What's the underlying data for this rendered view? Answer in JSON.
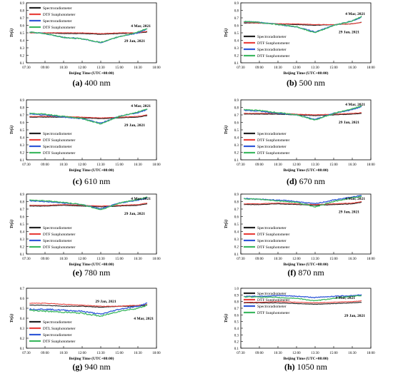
{
  "figure": {
    "x_axis_title": "Beijing Time (UTC+08:00)",
    "y_axis_title": "Tr(λ)",
    "x_tick_labels": [
      "07:30",
      "09:00",
      "10:30",
      "12:00",
      "13:30",
      "15:00",
      "16:30",
      "18:00"
    ],
    "y_tick_labels": [
      "0.1",
      "0.2",
      "0.3",
      "0.4",
      "0.5",
      "0.6",
      "0.7",
      "0.8",
      "0.9"
    ],
    "y_tick_labels_h": [
      "0.1",
      "0.2",
      "0.3",
      "0.4",
      "0.5",
      "0.6",
      "0.7",
      "0.8",
      "0.9",
      "1.0"
    ],
    "date_a": "4 Mar, 2021",
    "date_b": "29 Jan, 2021",
    "colors": {
      "Spectroradiometer_mar": "#222222",
      "DTF_mar": "#e8413c",
      "Spectroradiometer_jan": "#2f57d8",
      "DTF_jan": "#3cb860"
    }
  },
  "chart_data": [
    {
      "type": "line",
      "caption_letter": "(a)",
      "caption_text": " 400 nm",
      "x": [
        "07:45",
        "09:00",
        "10:30",
        "12:00",
        "13:30",
        "15:00",
        "16:30",
        "17:15"
      ],
      "ylim": [
        0.1,
        0.9
      ],
      "legend": [
        "Spectroradiometer",
        "DTF Sunphotometer",
        "Spectroradiometer",
        "DTF Sunphotometer"
      ],
      "series": [
        {
          "name": "Spectroradiometer",
          "values": [
            0.5,
            0.5,
            0.49,
            0.49,
            0.48,
            0.49,
            0.5,
            0.51
          ]
        },
        {
          "name": "DTF Sunphotometer",
          "values": [
            0.5,
            0.5,
            0.5,
            0.5,
            0.49,
            0.5,
            0.5,
            0.52
          ]
        },
        {
          "name": "Spectroradiometer",
          "values": [
            0.51,
            0.49,
            0.44,
            0.42,
            0.37,
            0.45,
            0.5,
            0.55
          ]
        },
        {
          "name": "DTF Sunphotometer",
          "values": [
            0.51,
            0.49,
            0.44,
            0.42,
            0.37,
            0.45,
            0.51,
            0.56
          ]
        }
      ]
    },
    {
      "type": "line",
      "caption_letter": "(b)",
      "caption_text": " 500 nm",
      "x": [
        "07:45",
        "09:00",
        "10:30",
        "12:00",
        "13:30",
        "15:00",
        "16:30",
        "17:15"
      ],
      "ylim": [
        0.1,
        0.9
      ],
      "legend": [
        "Spectroradiometer",
        "DTF Sunphotometer",
        "Spectroradiometer",
        "DTF Sunphotometer"
      ],
      "series": [
        {
          "name": "Spectroradiometer",
          "values": [
            0.63,
            0.63,
            0.62,
            0.61,
            0.6,
            0.61,
            0.62,
            0.64
          ]
        },
        {
          "name": "DTF Sunphotometer",
          "values": [
            0.64,
            0.63,
            0.62,
            0.62,
            0.61,
            0.61,
            0.62,
            0.64
          ]
        },
        {
          "name": "Spectroradiometer",
          "values": [
            0.65,
            0.64,
            0.61,
            0.58,
            0.51,
            0.6,
            0.66,
            0.71
          ]
        },
        {
          "name": "DTF Sunphotometer",
          "values": [
            0.65,
            0.64,
            0.61,
            0.58,
            0.5,
            0.6,
            0.66,
            0.72
          ]
        }
      ]
    },
    {
      "type": "line",
      "caption_letter": "(c)",
      "caption_text": " 610 nm",
      "x": [
        "07:45",
        "09:00",
        "10:30",
        "12:00",
        "13:30",
        "15:00",
        "16:30",
        "17:15"
      ],
      "ylim": [
        0.1,
        0.9
      ],
      "legend": [
        "Spectroradiometer",
        "DTF Sunphotometer",
        "Spectroradiometer",
        "DTF Sunphotometer"
      ],
      "series": [
        {
          "name": "Spectroradiometer",
          "values": [
            0.67,
            0.67,
            0.67,
            0.66,
            0.65,
            0.66,
            0.67,
            0.69
          ]
        },
        {
          "name": "DTF Sunphotometer",
          "values": [
            0.68,
            0.68,
            0.68,
            0.67,
            0.66,
            0.67,
            0.68,
            0.7
          ]
        },
        {
          "name": "Spectroradiometer",
          "values": [
            0.71,
            0.7,
            0.67,
            0.65,
            0.59,
            0.68,
            0.73,
            0.77
          ]
        },
        {
          "name": "DTF Sunphotometer",
          "values": [
            0.72,
            0.71,
            0.68,
            0.65,
            0.58,
            0.68,
            0.74,
            0.78
          ]
        }
      ]
    },
    {
      "type": "line",
      "caption_letter": "(d)",
      "caption_text": " 670 nm",
      "x": [
        "07:45",
        "09:00",
        "10:30",
        "12:00",
        "13:30",
        "15:00",
        "16:30",
        "17:15"
      ],
      "ylim": [
        0.1,
        0.9
      ],
      "legend": [
        "Spectroradiometer",
        "DTF Sunphotometer",
        "Spectroradiometer",
        "DTF Sunphotometer"
      ],
      "series": [
        {
          "name": "Spectroradiometer",
          "values": [
            0.71,
            0.71,
            0.71,
            0.7,
            0.69,
            0.7,
            0.71,
            0.72
          ]
        },
        {
          "name": "DTF Sunphotometer",
          "values": [
            0.72,
            0.72,
            0.72,
            0.71,
            0.7,
            0.71,
            0.72,
            0.73
          ]
        },
        {
          "name": "Spectroradiometer",
          "values": [
            0.76,
            0.75,
            0.72,
            0.7,
            0.64,
            0.72,
            0.77,
            0.81
          ]
        },
        {
          "name": "DTF Sunphotometer",
          "values": [
            0.77,
            0.76,
            0.73,
            0.7,
            0.63,
            0.72,
            0.78,
            0.82
          ]
        }
      ]
    },
    {
      "type": "line",
      "caption_letter": "(e)",
      "caption_text": " 780 nm",
      "x": [
        "07:45",
        "09:00",
        "10:30",
        "12:00",
        "13:30",
        "15:00",
        "16:30",
        "17:15"
      ],
      "ylim": [
        0.1,
        0.9
      ],
      "legend": [
        "Spectroradiometer",
        "DTF Sunphotometer",
        "Spectroradiometer",
        "DTF Sunphotometer"
      ],
      "series": [
        {
          "name": "Spectroradiometer",
          "values": [
            0.74,
            0.74,
            0.75,
            0.74,
            0.73,
            0.74,
            0.75,
            0.77
          ]
        },
        {
          "name": "DTF Sunphotometer",
          "values": [
            0.75,
            0.75,
            0.76,
            0.75,
            0.74,
            0.75,
            0.76,
            0.78
          ]
        },
        {
          "name": "Spectroradiometer",
          "values": [
            0.81,
            0.8,
            0.78,
            0.76,
            0.7,
            0.78,
            0.82,
            0.85
          ]
        },
        {
          "name": "DTF Sunphotometer",
          "values": [
            0.82,
            0.81,
            0.79,
            0.76,
            0.69,
            0.78,
            0.83,
            0.86
          ]
        }
      ]
    },
    {
      "type": "line",
      "caption_letter": "(f)",
      "caption_text": " 870 nm",
      "x": [
        "07:45",
        "09:00",
        "10:30",
        "12:00",
        "13:30",
        "15:00",
        "16:30",
        "17:15"
      ],
      "ylim": [
        0.1,
        0.9
      ],
      "legend": [
        "Spectroradiometer",
        "DTF Sunphotometer",
        "Spectroradiometer",
        "DTF Sunphotometer"
      ],
      "series": [
        {
          "name": "Spectroradiometer",
          "values": [
            0.76,
            0.76,
            0.77,
            0.76,
            0.75,
            0.76,
            0.77,
            0.79
          ]
        },
        {
          "name": "DTF Sunphotometer",
          "values": [
            0.77,
            0.77,
            0.78,
            0.77,
            0.76,
            0.77,
            0.78,
            0.8
          ]
        },
        {
          "name": "Spectroradiometer",
          "values": [
            0.84,
            0.83,
            0.82,
            0.8,
            0.77,
            0.82,
            0.86,
            0.88
          ]
        },
        {
          "name": "DTF Sunphotometer",
          "values": [
            0.84,
            0.83,
            0.81,
            0.79,
            0.73,
            0.8,
            0.85,
            0.87
          ]
        }
      ]
    },
    {
      "type": "line",
      "caption_letter": "(g)",
      "caption_text": " 940 nm",
      "x": [
        "07:45",
        "09:00",
        "10:30",
        "12:00",
        "13:30",
        "15:00",
        "16:30",
        "17:15"
      ],
      "ylim": [
        0.1,
        0.7
      ],
      "legend": [
        "Spectroradiometer",
        "DTL Sunphotometer",
        "Spectroradiometer",
        "DTF Sunphotometer"
      ],
      "series": [
        {
          "name": "Spectroradiometer",
          "values": [
            0.53,
            0.53,
            0.52,
            0.52,
            0.51,
            0.52,
            0.52,
            0.53
          ]
        },
        {
          "name": "DTL Sunphotometer",
          "values": [
            0.55,
            0.55,
            0.54,
            0.53,
            0.52,
            0.52,
            0.53,
            0.54
          ]
        },
        {
          "name": "Spectroradiometer",
          "values": [
            0.49,
            0.49,
            0.48,
            0.47,
            0.44,
            0.49,
            0.52,
            0.55
          ]
        },
        {
          "name": "DTF Sunphotometer",
          "values": [
            0.48,
            0.47,
            0.46,
            0.45,
            0.42,
            0.47,
            0.5,
            0.53
          ]
        }
      ]
    },
    {
      "type": "line",
      "caption_letter": "(h)",
      "caption_text": " 1050 nm",
      "x": [
        "07:45",
        "09:00",
        "10:30",
        "12:00",
        "13:30",
        "15:00",
        "16:30",
        "17:15"
      ],
      "ylim": [
        0.1,
        1.0
      ],
      "legend": [
        "Spectroradiometer",
        "DTF Sunphotometer",
        "Spectroradiometer",
        "DTF Sunphotometer"
      ],
      "series": [
        {
          "name": "Spectroradiometer",
          "values": [
            0.78,
            0.78,
            0.78,
            0.77,
            0.76,
            0.77,
            0.78,
            0.79
          ]
        },
        {
          "name": "DTF Sunphotometer",
          "values": [
            0.79,
            0.79,
            0.8,
            0.79,
            0.78,
            0.79,
            0.8,
            0.81
          ]
        },
        {
          "name": "Spectroradiometer",
          "values": [
            0.88,
            0.88,
            0.89,
            0.88,
            0.86,
            0.88,
            0.89,
            0.9
          ]
        },
        {
          "name": "DTF Sunphotometer",
          "values": [
            0.87,
            0.87,
            0.86,
            0.85,
            0.81,
            0.85,
            0.88,
            0.89
          ]
        }
      ]
    }
  ]
}
